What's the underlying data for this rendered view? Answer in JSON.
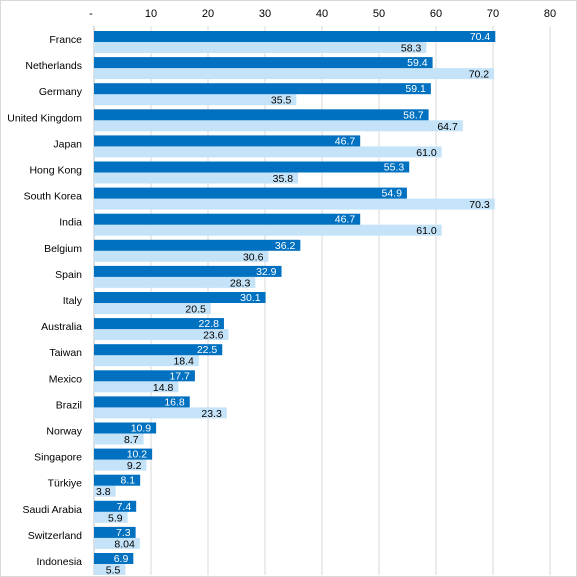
{
  "chart_data": {
    "type": "bar",
    "orientation": "horizontal",
    "x_axis_position": "top",
    "grid": true,
    "xlim": [
      -10,
      80
    ],
    "x_ticks": [
      "-",
      "10",
      "20",
      "30",
      "40",
      "50",
      "60",
      "70",
      "80"
    ],
    "x_tick_values": [
      -10,
      10,
      20,
      30,
      40,
      50,
      60,
      70,
      80
    ],
    "categories": [
      "France",
      "Netherlands",
      "Germany",
      "United Kingdom",
      "Japan",
      "Hong Kong",
      "South Korea",
      "India",
      "Belgium",
      "Spain",
      "Italy",
      "Australia",
      "Taiwan",
      "Mexico",
      "Brazil",
      "Norway",
      "Singapore",
      "Türkiye",
      "Saudi Arabia",
      "Switzerland",
      "Indonesia"
    ],
    "series": [
      {
        "values": [
          70.4,
          59.4,
          59.1,
          58.7,
          46.7,
          55.3,
          54.9,
          46.7,
          36.2,
          32.9,
          30.1,
          22.8,
          22.5,
          17.7,
          16.8,
          10.9,
          10.2,
          8.1,
          7.4,
          7.3,
          6.9
        ],
        "labels": [
          "70.4",
          "59.4",
          "59.1",
          "58.7",
          "46.7",
          "55.3",
          "54.9",
          "46.7",
          "36.2",
          "32.9",
          "30.1",
          "22.8",
          "22.5",
          "17.7",
          "16.8",
          "10.9",
          "10.2",
          "8.1",
          "7.4",
          "7.3",
          "6.9"
        ],
        "color": "#0070C0",
        "label_color": "#ffffff"
      },
      {
        "values": [
          58.3,
          70.2,
          35.5,
          64.7,
          61.0,
          35.8,
          70.3,
          61.0,
          30.6,
          28.3,
          20.5,
          23.6,
          18.4,
          14.8,
          23.3,
          8.7,
          9.2,
          3.8,
          5.9,
          8.04,
          5.5
        ],
        "labels": [
          "58.3",
          "70.2",
          "35.5",
          "64.7",
          "61.0",
          "35.8",
          "70.3",
          "61.0",
          "30.6",
          "28.3",
          "20.5",
          "23.6",
          "18.4",
          "14.8",
          "23.3",
          "8.7",
          "9.2",
          "3.8",
          "5.9",
          "8.04",
          "5.5"
        ],
        "color": "#C5E3F8",
        "label_color": "#000000"
      }
    ],
    "colors": {
      "grid": "#d9d9d9",
      "border": "#d9d9d9"
    }
  }
}
